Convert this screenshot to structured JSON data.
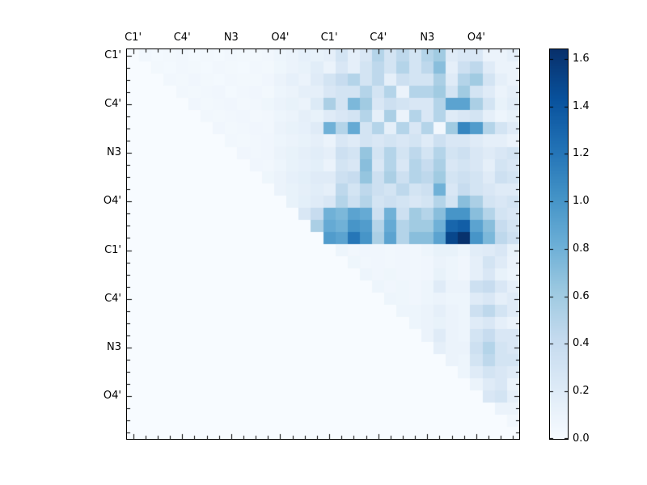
{
  "figure": {
    "background_color": "#ffffff",
    "title": ""
  },
  "chart_data": {
    "type": "heatmap",
    "title": "",
    "xlabel": "",
    "ylabel": "",
    "n_rows": 32,
    "n_cols": 32,
    "x_ticklabels": [
      "C1'",
      "C4'",
      "N3",
      "O4'",
      "C1'",
      "C4'",
      "N3",
      "O4'"
    ],
    "y_ticklabels": [
      "C1'",
      "C4'",
      "N3",
      "O4'",
      "C1'",
      "C4'",
      "N3",
      "O4'"
    ],
    "tick_label_cell_positions": [
      0.5,
      4.5,
      8.5,
      12.5,
      16.5,
      20.5,
      24.5,
      28.5
    ],
    "minor_tick_every_cell": true,
    "grid": false,
    "vmin": 0.0,
    "vmax": 1.64,
    "colormap": "Blues",
    "colormap_stops": [
      [
        0.0,
        "#f7fbff"
      ],
      [
        0.125,
        "#deebf7"
      ],
      [
        0.25,
        "#c6dbef"
      ],
      [
        0.375,
        "#9ecae1"
      ],
      [
        0.5,
        "#6baed6"
      ],
      [
        0.625,
        "#4292c6"
      ],
      [
        0.75,
        "#2171b5"
      ],
      [
        0.875,
        "#08519c"
      ],
      [
        1.0,
        "#08306b"
      ]
    ],
    "colorbar": {
      "position": "right",
      "tick_values": [
        0.0,
        0.2,
        0.4,
        0.6,
        0.8,
        1.0,
        1.2,
        1.4,
        1.6
      ],
      "tick_labels": [
        "0.0",
        "0.2",
        "0.4",
        "0.6",
        "0.8",
        "1.0",
        "1.2",
        "1.4",
        "1.6"
      ]
    },
    "matrix": [
      [
        0,
        0.05,
        0.03,
        0.04,
        0.05,
        0.03,
        0.04,
        0.03,
        0.05,
        0.04,
        0.04,
        0.05,
        0.08,
        0.1,
        0.14,
        0.12,
        0.15,
        0.3,
        0.15,
        0.25,
        0.5,
        0.3,
        0.45,
        0.3,
        0.5,
        0.6,
        0.2,
        0.25,
        0.25,
        0.1,
        0.1,
        0.15
      ],
      [
        0,
        0,
        0.04,
        0.03,
        0.05,
        0.04,
        0.03,
        0.05,
        0.04,
        0.03,
        0.05,
        0.04,
        0.07,
        0.1,
        0.12,
        0.18,
        0.1,
        0.25,
        0.15,
        0.3,
        0.45,
        0.3,
        0.5,
        0.3,
        0.45,
        0.7,
        0.15,
        0.35,
        0.45,
        0.2,
        0.1,
        0.1
      ],
      [
        0,
        0,
        0,
        0.05,
        0.04,
        0.06,
        0.04,
        0.03,
        0.05,
        0.04,
        0.04,
        0.06,
        0.1,
        0.14,
        0.1,
        0.2,
        0.3,
        0.4,
        0.5,
        0.3,
        0.45,
        0.15,
        0.35,
        0.3,
        0.3,
        0.55,
        0.2,
        0.5,
        0.6,
        0.3,
        0.15,
        0.1
      ],
      [
        0,
        0,
        0,
        0,
        0.05,
        0.04,
        0.05,
        0.06,
        0.03,
        0.05,
        0.06,
        0.04,
        0.08,
        0.1,
        0.15,
        0.15,
        0.25,
        0.3,
        0.3,
        0.5,
        0.3,
        0.5,
        0.1,
        0.5,
        0.5,
        0.6,
        0.3,
        0.6,
        0.3,
        0.2,
        0.1,
        0.15
      ],
      [
        0,
        0,
        0,
        0,
        0,
        0.06,
        0.04,
        0.05,
        0.06,
        0.04,
        0.05,
        0.07,
        0.1,
        0.12,
        0.1,
        0.22,
        0.55,
        0.3,
        0.75,
        0.6,
        0.25,
        0.35,
        0.3,
        0.25,
        0.25,
        0.5,
        0.9,
        0.9,
        0.55,
        0.3,
        0.12,
        0.18
      ],
      [
        0,
        0,
        0,
        0,
        0,
        0,
        0.05,
        0.04,
        0.05,
        0.06,
        0.04,
        0.05,
        0.08,
        0.1,
        0.15,
        0.12,
        0.2,
        0.25,
        0.3,
        0.5,
        0.15,
        0.55,
        0.1,
        0.5,
        0.25,
        0.5,
        0.2,
        0.25,
        0.3,
        0.15,
        0.08,
        0.12
      ],
      [
        0,
        0,
        0,
        0,
        0,
        0,
        0,
        0.06,
        0.04,
        0.05,
        0.06,
        0.05,
        0.1,
        0.12,
        0.14,
        0.2,
        0.8,
        0.5,
        0.85,
        0.3,
        0.5,
        0.15,
        0.5,
        0.25,
        0.5,
        0.05,
        0.6,
        1.1,
        0.95,
        0.5,
        0.3,
        0.2
      ],
      [
        0,
        0,
        0,
        0,
        0,
        0,
        0,
        0,
        0.05,
        0.04,
        0.05,
        0.06,
        0.08,
        0.1,
        0.12,
        0.15,
        0.1,
        0.25,
        0.2,
        0.3,
        0.25,
        0.3,
        0.25,
        0.3,
        0.2,
        0.35,
        0.25,
        0.25,
        0.2,
        0.15,
        0.15,
        0.1
      ],
      [
        0,
        0,
        0,
        0,
        0,
        0,
        0,
        0,
        0,
        0.06,
        0.05,
        0.06,
        0.1,
        0.12,
        0.15,
        0.18,
        0.15,
        0.35,
        0.3,
        0.65,
        0.3,
        0.5,
        0.3,
        0.45,
        0.3,
        0.5,
        0.3,
        0.35,
        0.25,
        0.2,
        0.25,
        0.3
      ],
      [
        0,
        0,
        0,
        0,
        0,
        0,
        0,
        0,
        0,
        0,
        0.06,
        0.05,
        0.08,
        0.12,
        0.14,
        0.16,
        0.1,
        0.3,
        0.25,
        0.7,
        0.25,
        0.5,
        0.25,
        0.5,
        0.4,
        0.55,
        0.25,
        0.3,
        0.25,
        0.15,
        0.3,
        0.25
      ],
      [
        0,
        0,
        0,
        0,
        0,
        0,
        0,
        0,
        0,
        0,
        0,
        0.07,
        0.1,
        0.14,
        0.16,
        0.2,
        0.2,
        0.35,
        0.4,
        0.65,
        0.35,
        0.55,
        0.35,
        0.5,
        0.45,
        0.6,
        0.3,
        0.35,
        0.3,
        0.2,
        0.35,
        0.3
      ],
      [
        0,
        0,
        0,
        0,
        0,
        0,
        0,
        0,
        0,
        0,
        0,
        0,
        0.1,
        0.12,
        0.15,
        0.18,
        0.15,
        0.45,
        0.3,
        0.45,
        0.35,
        0.3,
        0.45,
        0.3,
        0.35,
        0.8,
        0.25,
        0.4,
        0.3,
        0.25,
        0.2,
        0.2
      ],
      [
        0,
        0,
        0,
        0,
        0,
        0,
        0,
        0,
        0,
        0,
        0,
        0,
        0,
        0.12,
        0.16,
        0.2,
        0.25,
        0.5,
        0.35,
        0.5,
        0.3,
        0.35,
        0.3,
        0.25,
        0.3,
        0.5,
        0.3,
        0.7,
        0.55,
        0.3,
        0.25,
        0.3
      ],
      [
        0,
        0,
        0,
        0,
        0,
        0,
        0,
        0,
        0,
        0,
        0,
        0,
        0,
        0,
        0.25,
        0.4,
        0.8,
        0.75,
        0.9,
        0.85,
        0.35,
        0.8,
        0.35,
        0.6,
        0.5,
        0.7,
        1.0,
        1.0,
        0.7,
        0.5,
        0.3,
        0.25
      ],
      [
        0,
        0,
        0,
        0,
        0,
        0,
        0,
        0,
        0,
        0,
        0,
        0,
        0,
        0,
        0,
        0.55,
        0.85,
        0.8,
        1.0,
        0.95,
        0.5,
        0.85,
        0.5,
        0.6,
        0.6,
        0.8,
        1.3,
        1.35,
        0.9,
        0.7,
        0.4,
        0.3
      ],
      [
        0,
        0,
        0,
        0,
        0,
        0,
        0,
        0,
        0,
        0,
        0,
        0,
        0,
        0,
        0,
        0,
        0.95,
        0.9,
        1.2,
        1.0,
        0.55,
        0.9,
        0.5,
        0.7,
        0.7,
        0.9,
        1.5,
        1.63,
        1.0,
        0.75,
        0.45,
        0.35
      ],
      [
        0,
        0,
        0,
        0,
        0,
        0,
        0,
        0,
        0,
        0,
        0,
        0,
        0,
        0,
        0,
        0,
        0,
        0.08,
        0.05,
        0.06,
        0.06,
        0.05,
        0.06,
        0.05,
        0.08,
        0.12,
        0.12,
        0.08,
        0.18,
        0.2,
        0.25,
        0.12
      ],
      [
        0,
        0,
        0,
        0,
        0,
        0,
        0,
        0,
        0,
        0,
        0,
        0,
        0,
        0,
        0,
        0,
        0,
        0,
        0.07,
        0.05,
        0.06,
        0.05,
        0.06,
        0.05,
        0.06,
        0.1,
        0.08,
        0.06,
        0.15,
        0.3,
        0.2,
        0.1
      ],
      [
        0,
        0,
        0,
        0,
        0,
        0,
        0,
        0,
        0,
        0,
        0,
        0,
        0,
        0,
        0,
        0,
        0,
        0,
        0,
        0.08,
        0.06,
        0.07,
        0.06,
        0.05,
        0.06,
        0.12,
        0.08,
        0.06,
        0.15,
        0.25,
        0.12,
        0.08
      ],
      [
        0,
        0,
        0,
        0,
        0,
        0,
        0,
        0,
        0,
        0,
        0,
        0,
        0,
        0,
        0,
        0,
        0,
        0,
        0,
        0,
        0.08,
        0.06,
        0.07,
        0.06,
        0.08,
        0.2,
        0.1,
        0.1,
        0.35,
        0.4,
        0.25,
        0.15
      ],
      [
        0,
        0,
        0,
        0,
        0,
        0,
        0,
        0,
        0,
        0,
        0,
        0,
        0,
        0,
        0,
        0,
        0,
        0,
        0,
        0,
        0,
        0.08,
        0.07,
        0.06,
        0.08,
        0.1,
        0.08,
        0.08,
        0.2,
        0.25,
        0.15,
        0.2
      ],
      [
        0,
        0,
        0,
        0,
        0,
        0,
        0,
        0,
        0,
        0,
        0,
        0,
        0,
        0,
        0,
        0,
        0,
        0,
        0,
        0,
        0,
        0,
        0.08,
        0.08,
        0.1,
        0.15,
        0.1,
        0.08,
        0.35,
        0.45,
        0.3,
        0.2
      ],
      [
        0,
        0,
        0,
        0,
        0,
        0,
        0,
        0,
        0,
        0,
        0,
        0,
        0,
        0,
        0,
        0,
        0,
        0,
        0,
        0,
        0,
        0,
        0,
        0.08,
        0.1,
        0.12,
        0.1,
        0.08,
        0.2,
        0.25,
        0.15,
        0.1
      ],
      [
        0,
        0,
        0,
        0,
        0,
        0,
        0,
        0,
        0,
        0,
        0,
        0,
        0,
        0,
        0,
        0,
        0,
        0,
        0,
        0,
        0,
        0,
        0,
        0,
        0.1,
        0.2,
        0.1,
        0.08,
        0.3,
        0.4,
        0.25,
        0.25
      ],
      [
        0,
        0,
        0,
        0,
        0,
        0,
        0,
        0,
        0,
        0,
        0,
        0,
        0,
        0,
        0,
        0,
        0,
        0,
        0,
        0,
        0,
        0,
        0,
        0,
        0,
        0.15,
        0.1,
        0.1,
        0.35,
        0.5,
        0.3,
        0.25
      ],
      [
        0,
        0,
        0,
        0,
        0,
        0,
        0,
        0,
        0,
        0,
        0,
        0,
        0,
        0,
        0,
        0,
        0,
        0,
        0,
        0,
        0,
        0,
        0,
        0,
        0,
        0,
        0.1,
        0.08,
        0.3,
        0.45,
        0.3,
        0.3
      ],
      [
        0,
        0,
        0,
        0,
        0,
        0,
        0,
        0,
        0,
        0,
        0,
        0,
        0,
        0,
        0,
        0,
        0,
        0,
        0,
        0,
        0,
        0,
        0,
        0,
        0,
        0,
        0,
        0.08,
        0.2,
        0.3,
        0.25,
        0.2
      ],
      [
        0,
        0,
        0,
        0,
        0,
        0,
        0,
        0,
        0,
        0,
        0,
        0,
        0,
        0,
        0,
        0,
        0,
        0,
        0,
        0,
        0,
        0,
        0,
        0,
        0,
        0,
        0,
        0,
        0.1,
        0.2,
        0.25,
        0.1
      ],
      [
        0,
        0,
        0,
        0,
        0,
        0,
        0,
        0,
        0,
        0,
        0,
        0,
        0,
        0,
        0,
        0,
        0,
        0,
        0,
        0,
        0,
        0,
        0,
        0,
        0,
        0,
        0,
        0,
        0,
        0.25,
        0.3,
        0.15
      ],
      [
        0,
        0,
        0,
        0,
        0,
        0,
        0,
        0,
        0,
        0,
        0,
        0,
        0,
        0,
        0,
        0,
        0,
        0,
        0,
        0,
        0,
        0,
        0,
        0,
        0,
        0,
        0,
        0,
        0,
        0,
        0.1,
        0.1
      ],
      [
        0,
        0,
        0,
        0,
        0,
        0,
        0,
        0,
        0,
        0,
        0,
        0,
        0,
        0,
        0,
        0,
        0,
        0,
        0,
        0,
        0,
        0,
        0,
        0,
        0,
        0,
        0,
        0,
        0,
        0,
        0,
        0.05
      ],
      [
        0,
        0,
        0,
        0,
        0,
        0,
        0,
        0,
        0,
        0,
        0,
        0,
        0,
        0,
        0,
        0,
        0,
        0,
        0,
        0,
        0,
        0,
        0,
        0,
        0,
        0,
        0,
        0,
        0,
        0,
        0,
        0
      ]
    ]
  }
}
